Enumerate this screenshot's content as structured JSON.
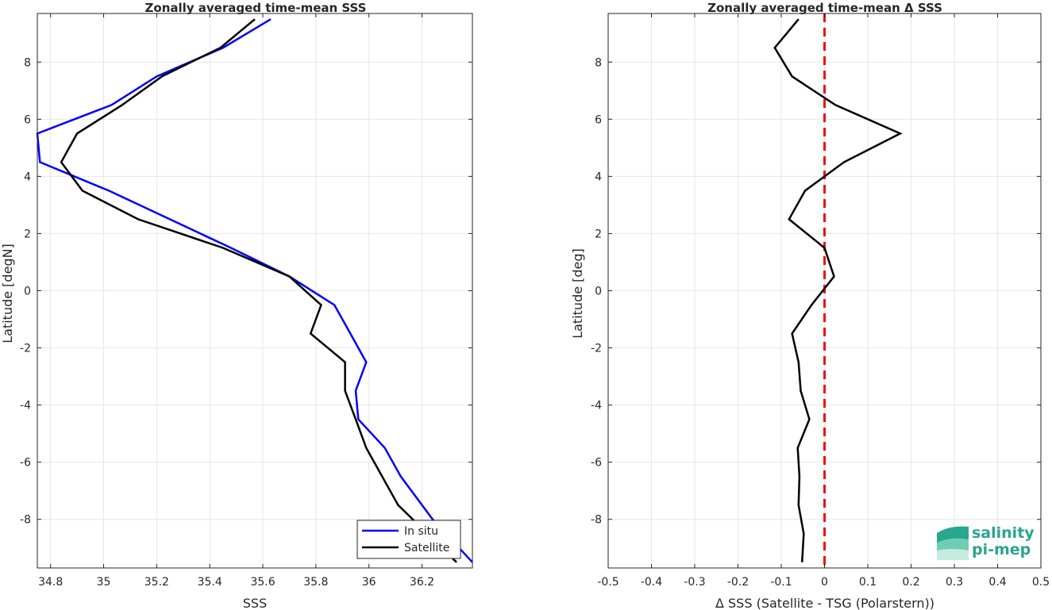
{
  "chart_data": [
    {
      "type": "line",
      "title": "Zonally averaged time-mean SSS",
      "xlabel": "SSS",
      "ylabel": "Latitude [degN]",
      "xlim": [
        34.75,
        36.39
      ],
      "ylim": [
        -9.7,
        9.7
      ],
      "xticks": [
        34.8,
        35,
        35.2,
        35.4,
        35.6,
        35.8,
        36,
        36.2
      ],
      "yticks": [
        -8,
        -6,
        -4,
        -2,
        0,
        2,
        4,
        6,
        8
      ],
      "grid": true,
      "legend_position": "bottom-right",
      "series": [
        {
          "name": "In situ",
          "color": "#0000ff",
          "x": [
            35.63,
            35.45,
            35.2,
            35.03,
            34.75,
            34.76,
            35.02,
            35.48,
            35.7,
            35.87,
            35.93,
            35.99,
            35.95,
            35.96,
            36.06,
            36.12,
            36.24,
            36.39
          ],
          "y": [
            9.5,
            8.5,
            7.5,
            6.5,
            5.5,
            4.5,
            3.5,
            1.5,
            0.5,
            -0.5,
            -1.5,
            -2.5,
            -3.5,
            -4.5,
            -5.5,
            -6.5,
            -8.0,
            -9.5
          ]
        },
        {
          "name": "Satellite",
          "color": "#000000",
          "x": [
            35.57,
            35.44,
            35.22,
            35.07,
            34.9,
            34.84,
            34.92,
            35.13,
            35.45,
            35.7,
            35.82,
            35.78,
            35.91,
            35.91,
            35.95,
            35.99,
            36.11,
            36.33
          ],
          "y": [
            9.5,
            8.5,
            7.5,
            6.5,
            5.5,
            4.5,
            3.5,
            2.5,
            1.5,
            0.5,
            -0.5,
            -1.5,
            -2.5,
            -3.5,
            -4.5,
            -5.5,
            -7.5,
            -9.5
          ]
        }
      ]
    },
    {
      "type": "line",
      "title": "Zonally averaged time-mean Δ SSS",
      "xlabel": "Δ SSS (Satellite - TSG (Polarstern))",
      "ylabel": "Latitude [deg]",
      "xlim": [
        -0.5,
        0.5
      ],
      "ylim": [
        -9.7,
        9.7
      ],
      "xticks": [
        -0.5,
        -0.4,
        -0.3,
        -0.2,
        -0.1,
        0,
        0.1,
        0.2,
        0.3,
        0.4,
        0.5
      ],
      "yticks": [
        -8,
        -6,
        -4,
        -2,
        0,
        2,
        4,
        6,
        8
      ],
      "grid": true,
      "reference_line": {
        "x": 0,
        "color": "#ee1111",
        "style": "dashed"
      },
      "series": [
        {
          "color": "#000000",
          "x": [
            -0.06,
            -0.115,
            -0.075,
            0.025,
            0.175,
            0.045,
            -0.045,
            -0.082,
            0.0,
            0.022,
            -0.03,
            -0.075,
            -0.06,
            -0.055,
            -0.035,
            -0.062,
            -0.058,
            -0.06,
            -0.048,
            -0.052
          ],
          "y": [
            9.5,
            8.5,
            7.5,
            6.5,
            5.5,
            4.5,
            3.5,
            2.5,
            1.5,
            0.5,
            -0.5,
            -1.5,
            -2.5,
            -3.5,
            -4.5,
            -5.5,
            -6.5,
            -7.5,
            -8.5,
            -9.5
          ]
        }
      ]
    }
  ],
  "logo": {
    "line1": "salinity",
    "line2": "pi-mep"
  },
  "colors": {
    "axis": "#262626",
    "grid": "#e6e6e6"
  }
}
